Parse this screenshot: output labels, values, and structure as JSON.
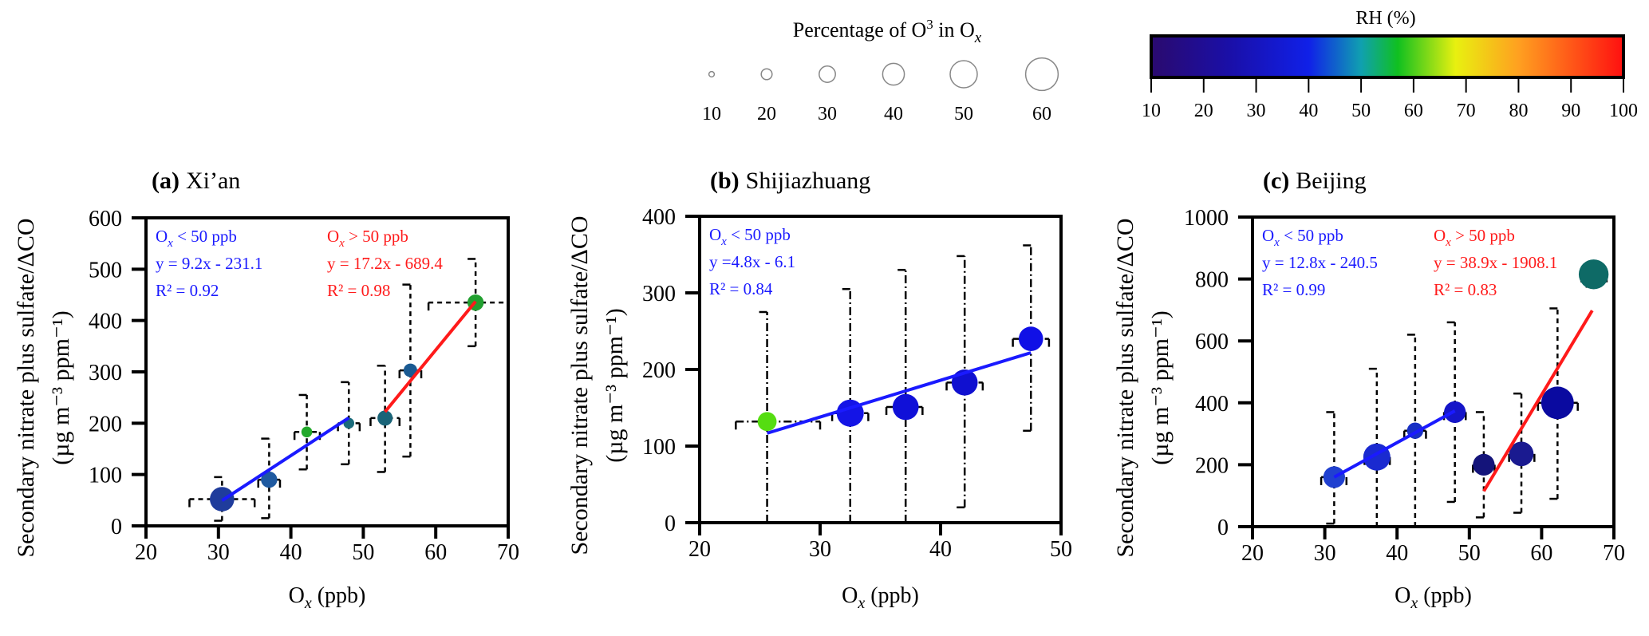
{
  "size_legend": {
    "title_main": "Percentage of O",
    "title_sup": "3",
    "title_in": "  in O",
    "title_sub": "x",
    "values": [
      10,
      20,
      30,
      40,
      50,
      60
    ],
    "labels": [
      "10",
      "20",
      "30",
      "40",
      "50",
      "60"
    ]
  },
  "color_legend": {
    "title": "RH (%)",
    "range": [
      10,
      100
    ],
    "labels": [
      "10",
      "20",
      "30",
      "40",
      "50",
      "60",
      "70",
      "80",
      "90",
      "100"
    ],
    "stops": [
      {
        "value": 10,
        "color": "#2a0a6e"
      },
      {
        "value": 25,
        "color": "#1a0fa8"
      },
      {
        "value": 40,
        "color": "#1020e8"
      },
      {
        "value": 50,
        "color": "#10a0b0"
      },
      {
        "value": 57,
        "color": "#10c020"
      },
      {
        "value": 68,
        "color": "#e8f010"
      },
      {
        "value": 80,
        "color": "#ffa020"
      },
      {
        "value": 100,
        "color": "#ff1010"
      }
    ]
  },
  "chart_data": [
    {
      "type": "scatter",
      "panel": "a",
      "title_tag": "(a)",
      "title": "Xi’an",
      "xlabel_main": "O",
      "xlabel_sub": "x",
      "xlabel_rest": " (ppb)",
      "ylabel_line1": "Secondary nitrate plus sulfate/ΔCO",
      "ylabel_line2": "(µg m⁻³ ppm⁻¹)",
      "xlim": [
        20,
        70
      ],
      "ylim": [
        0,
        600
      ],
      "xticks": [
        "20",
        "30",
        "40",
        "50",
        "60",
        "70"
      ],
      "yticks": [
        "0",
        "100",
        "200",
        "300",
        "400",
        "500",
        "600"
      ],
      "points": [
        {
          "x": 30.5,
          "y": 52,
          "pct_o3": 45,
          "color": "#1f3c9c",
          "yerr": [
            10,
            95
          ],
          "xerr": [
            26,
            35
          ]
        },
        {
          "x": 37.0,
          "y": 90,
          "pct_o3": 30,
          "color": "#1f5aa0",
          "yerr": [
            15,
            170
          ],
          "xerr": [
            35.5,
            38.5
          ]
        },
        {
          "x": 42.2,
          "y": 183,
          "pct_o3": 20,
          "color": "#22a82a",
          "yerr": [
            110,
            255
          ],
          "xerr": [
            40.5,
            44
          ]
        },
        {
          "x": 48.0,
          "y": 200,
          "pct_o3": 20,
          "color": "#1a6b7b",
          "yerr": [
            120,
            280
          ],
          "xerr": [
            46.5,
            49.5
          ]
        },
        {
          "x": 53.0,
          "y": 210,
          "pct_o3": 28,
          "color": "#1a6478",
          "yerr": [
            105,
            312
          ],
          "xerr": [
            51,
            55
          ]
        },
        {
          "x": 56.5,
          "y": 303,
          "pct_o3": 25,
          "color": "#1a5a92",
          "yerr": [
            135,
            470
          ],
          "xerr": [
            55,
            58
          ]
        },
        {
          "x": 65.5,
          "y": 435,
          "pct_o3": 30,
          "color": "#22a030",
          "yerr": [
            350,
            520
          ],
          "xerr": [
            59,
            70
          ]
        }
      ],
      "fits": [
        {
          "color": "#1a1aff",
          "slope": 9.2,
          "intercept": -231.1,
          "x_range": [
            30.5,
            48
          ],
          "label_main": "O",
          "label_sub": "x",
          "label_rest": " < 50 ppb",
          "equation": "y = 9.2x - 231.1",
          "r2": "R² = 0.92"
        },
        {
          "color": "#ff1a1a",
          "slope": 17.2,
          "intercept": -689.4,
          "x_range": [
            53,
            65.5
          ],
          "label_main": "O",
          "label_sub": "x",
          "label_rest": " > 50 ppb",
          "equation": "y = 17.2x - 689.4",
          "r2": "R² = 0.98"
        }
      ]
    },
    {
      "type": "scatter",
      "panel": "b",
      "title_tag": "(b)",
      "title": "Shijiazhuang",
      "xlabel_main": "O",
      "xlabel_sub": "x",
      "xlabel_rest": " (ppb)",
      "ylabel_line1": "Secondary nitrate plus sulfate/ΔCO",
      "ylabel_line2": "(µg m⁻³ ppm⁻¹)",
      "xlim": [
        20,
        50
      ],
      "ylim": [
        0,
        400
      ],
      "xticks": [
        "20",
        "30",
        "40",
        "50"
      ],
      "yticks": [
        "0",
        "100",
        "200",
        "300",
        "400"
      ],
      "points": [
        {
          "x": 25.6,
          "y": 132,
          "pct_o3": 35,
          "color": "#55dd11",
          "yerr": [
            0,
            275
          ],
          "xerr": [
            23,
            30
          ]
        },
        {
          "x": 32.5,
          "y": 143,
          "pct_o3": 50,
          "color": "#1414e6",
          "yerr": [
            0,
            305
          ],
          "xerr": [
            31,
            34
          ]
        },
        {
          "x": 37.1,
          "y": 151,
          "pct_o3": 48,
          "color": "#1010d8",
          "yerr": [
            0,
            330
          ],
          "xerr": [
            35.5,
            38.5
          ]
        },
        {
          "x": 42.0,
          "y": 183,
          "pct_o3": 48,
          "color": "#1010d0",
          "yerr": [
            20,
            348
          ],
          "xerr": [
            40.5,
            43.5
          ]
        },
        {
          "x": 47.5,
          "y": 240,
          "pct_o3": 45,
          "color": "#1010e6",
          "yerr": [
            120,
            362
          ],
          "xerr": [
            46,
            49
          ]
        }
      ],
      "fits": [
        {
          "color": "#1a1aff",
          "slope": 4.8,
          "intercept": -6.1,
          "x_range": [
            25.6,
            47.5
          ],
          "label_main": "O",
          "label_sub": "x",
          "label_rest": " < 50 ppb",
          "equation": "y =4.8x - 6.1",
          "r2": "R² = 0.84"
        }
      ]
    },
    {
      "type": "scatter",
      "panel": "c",
      "title_tag": "(c)",
      "title": "Beijing",
      "xlabel_main": "O",
      "xlabel_sub": "x",
      "xlabel_rest": " (ppb)",
      "ylabel_line1": "Secondary nitrate plus sulfate/ΔCO",
      "ylabel_line2": "(µg m⁻³ ppm⁻¹)",
      "xlim": [
        20,
        70
      ],
      "ylim": [
        0,
        1000
      ],
      "xticks": [
        "20",
        "30",
        "40",
        "50",
        "60",
        "70"
      ],
      "yticks": [
        "0",
        "200",
        "400",
        "600",
        "800",
        "1000"
      ],
      "points": [
        {
          "x": 31.3,
          "y": 160,
          "pct_o3": 40,
          "color": "#2040d0",
          "yerr": [
            10,
            370
          ],
          "xerr": [
            29.5,
            33
          ]
        },
        {
          "x": 37.2,
          "y": 225,
          "pct_o3": 50,
          "color": "#1a2ad0",
          "yerr": [
            0,
            510
          ],
          "xerr": [
            35.5,
            39
          ]
        },
        {
          "x": 42.5,
          "y": 310,
          "pct_o3": 30,
          "color": "#1830c4",
          "yerr": [
            0,
            620
          ],
          "xerr": [
            41,
            44
          ]
        },
        {
          "x": 48.0,
          "y": 370,
          "pct_o3": 40,
          "color": "#1515c8",
          "yerr": [
            80,
            660
          ],
          "xerr": [
            46.5,
            49.5
          ]
        },
        {
          "x": 52.0,
          "y": 200,
          "pct_o3": 40,
          "color": "#14147a",
          "yerr": [
            30,
            370
          ],
          "xerr": [
            50.5,
            53.5
          ]
        },
        {
          "x": 57.2,
          "y": 235,
          "pct_o3": 45,
          "color": "#1a1a90",
          "yerr": [
            45,
            430
          ],
          "xerr": [
            55.5,
            59
          ]
        },
        {
          "x": 62.2,
          "y": 400,
          "pct_o3": 60,
          "color": "#0a0aa0",
          "yerr": [
            90,
            705
          ],
          "xerr": [
            59.5,
            65
          ]
        },
        {
          "x": 67.2,
          "y": 815,
          "pct_o3": 55,
          "color": "#0e6a66",
          "yerr": [
            775,
            850
          ],
          "xerr": [
            65.5,
            69
          ]
        }
      ],
      "fits": [
        {
          "color": "#1a1aff",
          "slope": 12.8,
          "intercept": -240.5,
          "x_range": [
            31.3,
            48
          ],
          "label_main": "O",
          "label_sub": "x",
          "label_rest": " < 50 ppb",
          "equation": "y = 12.8x - 240.5",
          "r2": "R² = 0.99"
        },
        {
          "color": "#ff1a1a",
          "slope": 38.9,
          "intercept": -1908.1,
          "x_range": [
            52,
            67
          ],
          "label_main": "O",
          "label_sub": "x",
          "label_rest": " > 50 ppb",
          "equation": "y = 38.9x - 1908.1",
          "r2": "R² = 0.83"
        }
      ]
    }
  ]
}
